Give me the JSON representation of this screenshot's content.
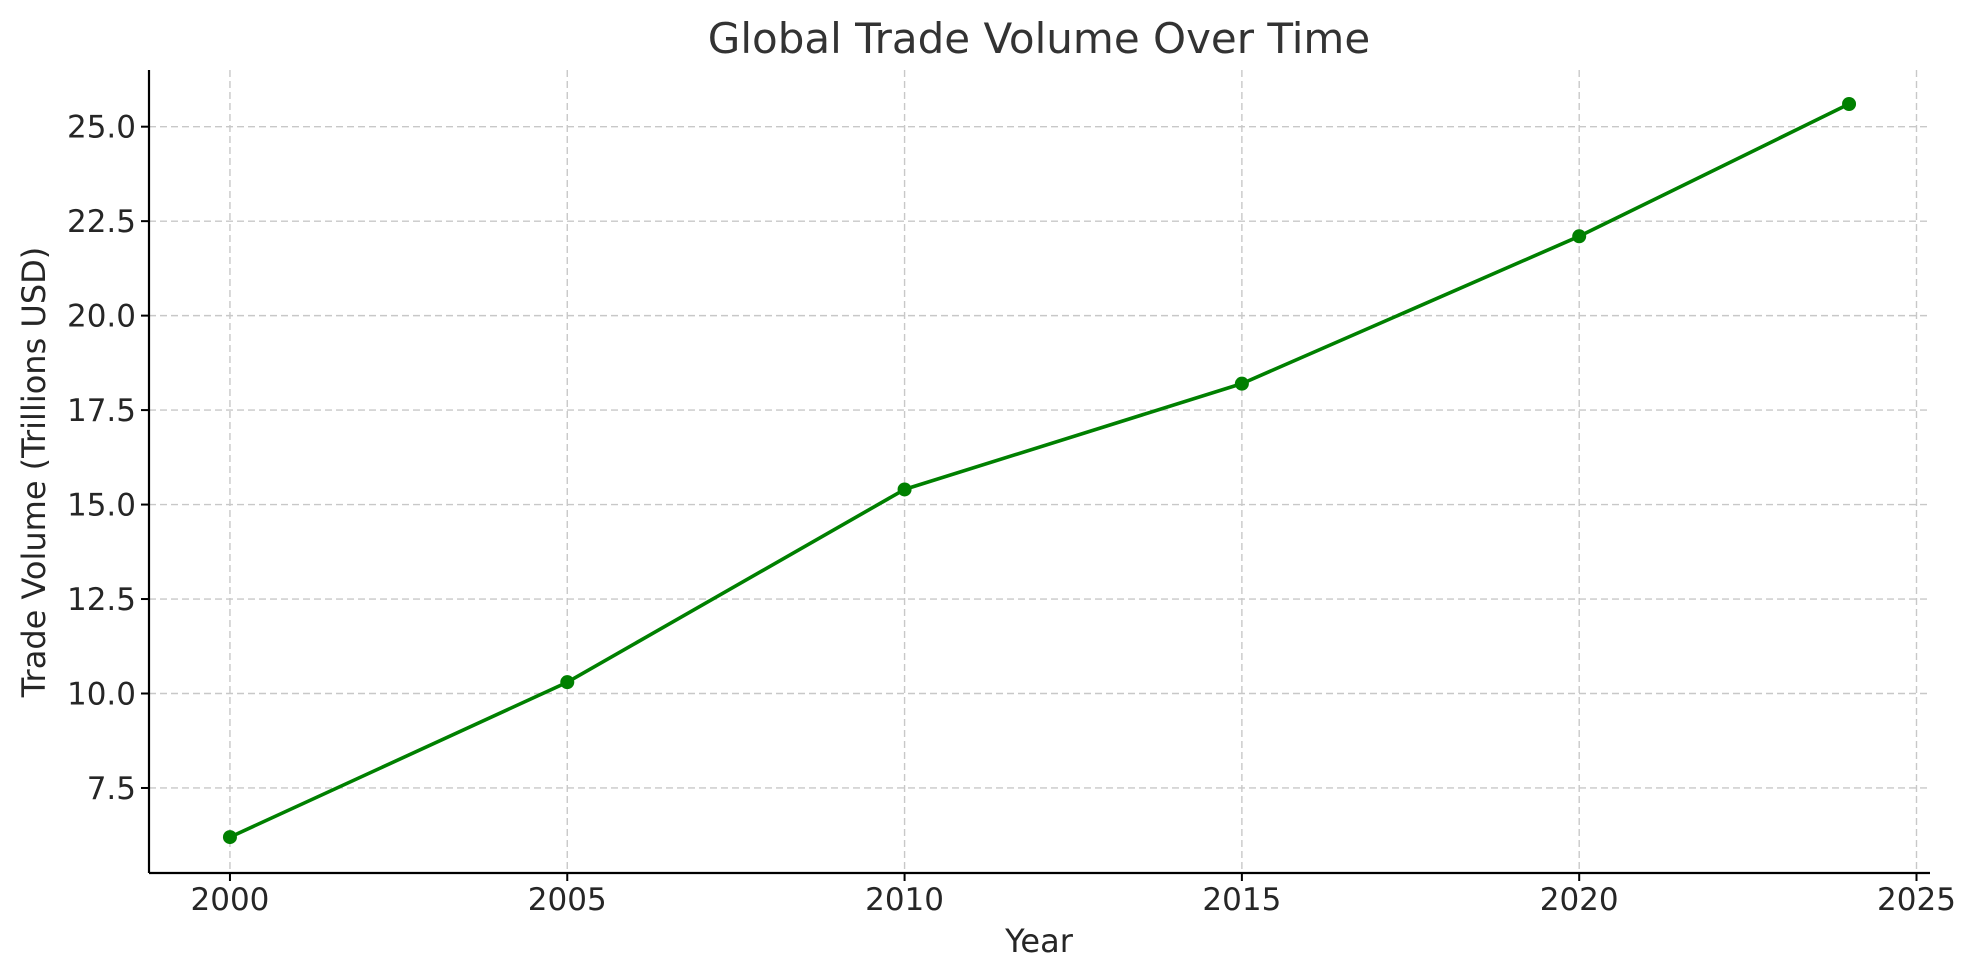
{
  "chart_data": {
    "type": "line",
    "title": "Global Trade Volume Over Time",
    "xlabel": "Year",
    "ylabel": "Trade Volume (Trillions USD)",
    "x": [
      2000,
      2005,
      2010,
      2015,
      2020,
      2024
    ],
    "series": [
      {
        "values": [
          6.2,
          10.3,
          15.4,
          18.2,
          22.1,
          25.6
        ],
        "color": "#008000",
        "marker": "circle"
      }
    ],
    "xlim": [
      1998.8,
      2025.2
    ],
    "ylim": [
      5.25,
      26.5
    ],
    "xticks": [
      2000,
      2005,
      2010,
      2015,
      2020,
      2025
    ],
    "xtick_labels": [
      "2000",
      "2005",
      "2010",
      "2015",
      "2020",
      "2025"
    ],
    "yticks": [
      7.5,
      10.0,
      12.5,
      15.0,
      17.5,
      20.0,
      22.5,
      25.0
    ],
    "ytick_labels": [
      "7.5",
      "10.0",
      "12.5",
      "15.0",
      "17.5",
      "20.0",
      "22.5",
      "25.0"
    ],
    "grid": true,
    "grid_style": "dashed",
    "spines": "left-bottom"
  }
}
